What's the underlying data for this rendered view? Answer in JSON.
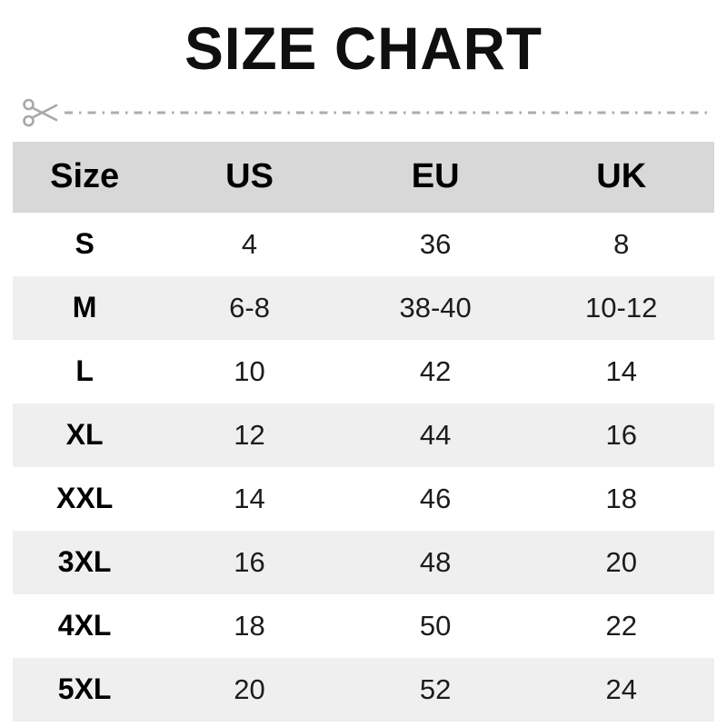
{
  "title": "SIZE CHART",
  "colors": {
    "header_bg": "#d8d8d8",
    "alt_row_bg": "#efefef",
    "cut_line": "#a8a8a8",
    "text": "#1c1c1c",
    "title_text": "#0f0f0f"
  },
  "cut_line": {
    "icon": "scissors-icon",
    "style": "dash-dot"
  },
  "chart_data": {
    "type": "table",
    "title": "SIZE CHART",
    "columns": [
      "Size",
      "US",
      "EU",
      "UK"
    ],
    "rows": [
      [
        "S",
        "4",
        "36",
        "8"
      ],
      [
        "M",
        "6-8",
        "38-40",
        "10-12"
      ],
      [
        "L",
        "10",
        "42",
        "14"
      ],
      [
        "XL",
        "12",
        "44",
        "16"
      ],
      [
        "XXL",
        "14",
        "46",
        "18"
      ],
      [
        "3XL",
        "16",
        "48",
        "20"
      ],
      [
        "4XL",
        "18",
        "50",
        "22"
      ],
      [
        "5XL",
        "20",
        "52",
        "24"
      ]
    ]
  }
}
